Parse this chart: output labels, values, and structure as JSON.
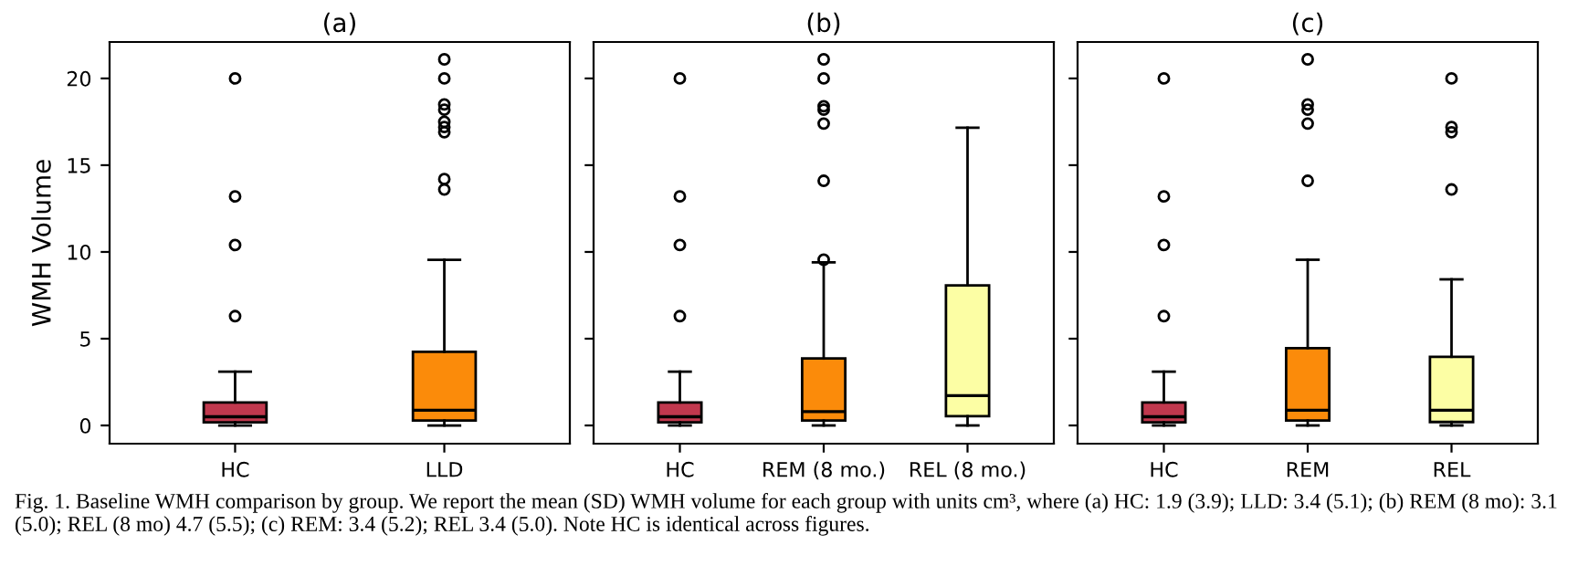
{
  "chart_data": [
    {
      "type": "box",
      "title": "(a)",
      "ylabel": "WMH Volume",
      "categories": [
        "HC",
        "LLD"
      ],
      "colors": [
        "#c1384e",
        "#fb8b0a"
      ],
      "ylim": [
        -1.05,
        22.1
      ],
      "yticks": [
        0,
        5,
        10,
        15,
        20
      ],
      "grid": false,
      "boxes": [
        {
          "low": 0,
          "q1": 0.18,
          "median": 0.5,
          "q3": 1.33,
          "high": 3.1,
          "outliers": [
            6.3,
            10.4,
            13.2,
            20
          ]
        },
        {
          "low": 0,
          "q1": 0.28,
          "median": 0.88,
          "q3": 4.25,
          "high": 9.55,
          "outliers": [
            13.6,
            14.2,
            16.9,
            17.2,
            17.5,
            18.2,
            18.5,
            20,
            21.1
          ]
        }
      ],
      "annotations": [
        "Fig. 1. Baseline WMH comparison by group. We report the mean (SD) WMH volume for each group with units cm³, where (a) HC: 1.9 (3.9); LLD: 3.4 (5.1); (b) REM (8 mo): 3.1 (5.0); REL (8 mo) 4.7 (5.5); (c) REM: 3.4 (5.2); REL 3.4 (5.0). Note HC is identical across figures."
      ]
    },
    {
      "type": "box",
      "title": "(b)",
      "categories": [
        "HC",
        "REM (8 mo.)",
        "REL (8 mo.)"
      ],
      "colors": [
        "#c1384e",
        "#fb8b0a",
        "#fcfea4"
      ],
      "ylim": [
        -1.05,
        22.1
      ],
      "yticks": [
        0,
        5,
        10,
        15,
        20
      ],
      "tick_labels": "x",
      "grid": false,
      "boxes": [
        {
          "low": 0,
          "q1": 0.18,
          "median": 0.5,
          "q3": 1.33,
          "high": 3.1,
          "outliers": [
            6.3,
            10.4,
            13.2,
            20
          ]
        },
        {
          "low": 0,
          "q1": 0.28,
          "median": 0.8,
          "q3": 3.86,
          "high": 9.4,
          "outliers": [
            9.55,
            14.1,
            17.4,
            18.2,
            18.4,
            20,
            21.1
          ]
        },
        {
          "low": 0,
          "q1": 0.53,
          "median": 1.72,
          "q3": 8.07,
          "high": 17.16
        }
      ]
    },
    {
      "type": "box",
      "title": "(c)",
      "categories": [
        "HC",
        "REM",
        "REL"
      ],
      "colors": [
        "#c1384e",
        "#fb8b0a",
        "#fcfea4"
      ],
      "ylim": [
        -1.05,
        22.1
      ],
      "yticks": [
        0,
        5,
        10,
        15,
        20
      ],
      "tick_labels": "x",
      "grid": false,
      "boxes": [
        {
          "low": 0,
          "q1": 0.18,
          "median": 0.5,
          "q3": 1.33,
          "high": 3.1,
          "outliers": [
            6.3,
            10.4,
            13.2,
            20
          ]
        },
        {
          "low": 0,
          "q1": 0.28,
          "median": 0.88,
          "q3": 4.46,
          "high": 9.55,
          "outliers": [
            14.1,
            17.4,
            18.2,
            18.5,
            21.1
          ]
        },
        {
          "low": 0,
          "q1": 0.2,
          "median": 0.88,
          "q3": 3.96,
          "high": 8.42,
          "outliers": [
            13.6,
            16.9,
            17.2,
            20
          ]
        }
      ]
    }
  ]
}
